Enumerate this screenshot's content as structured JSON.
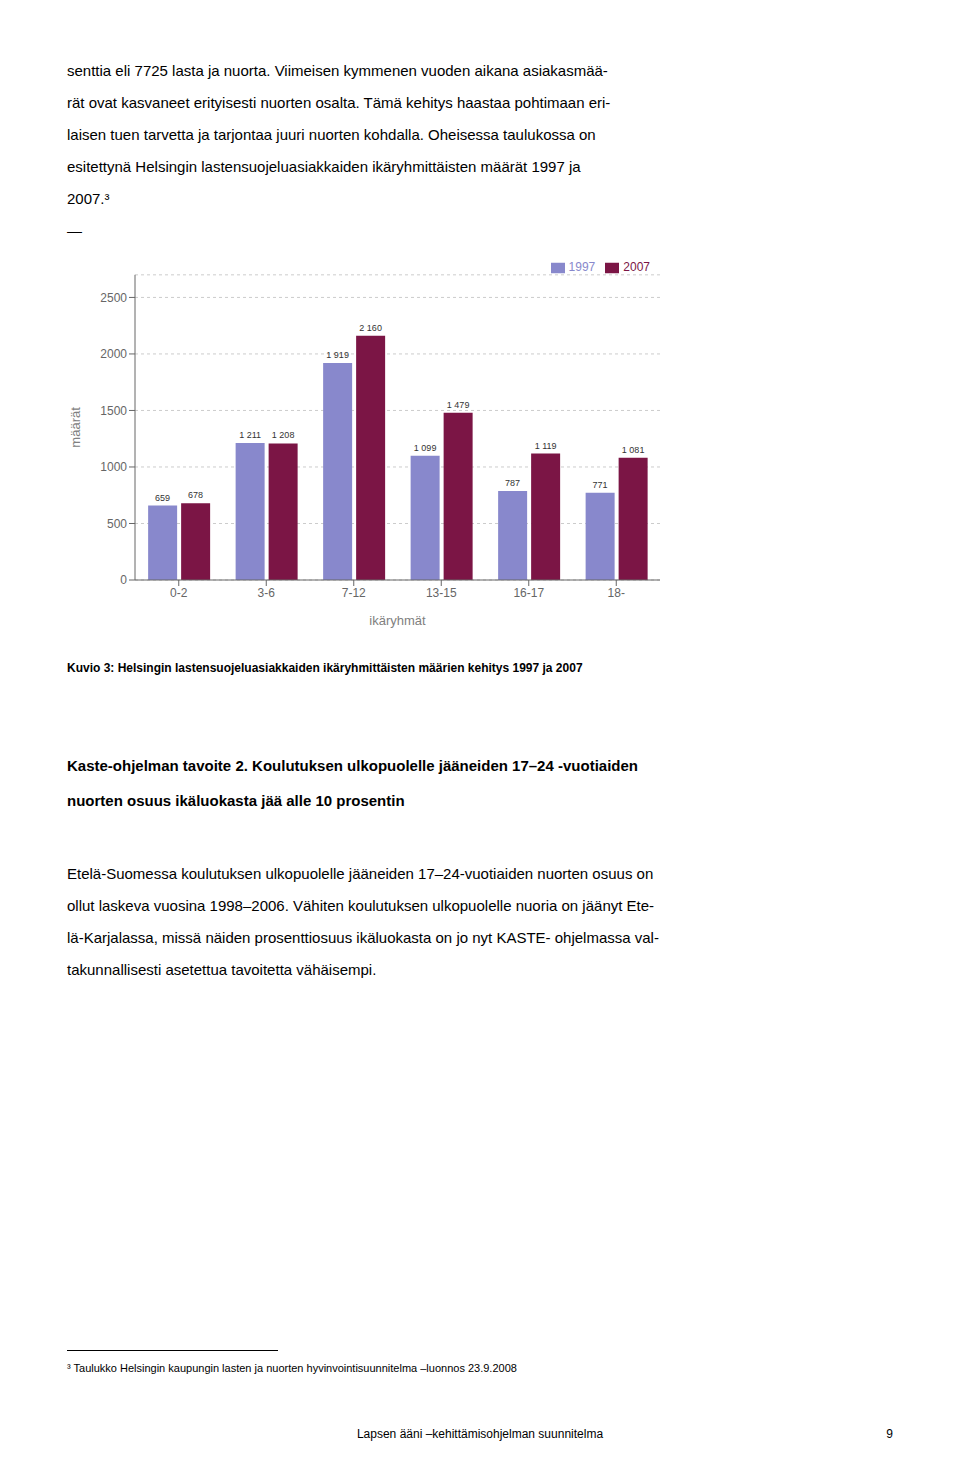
{
  "chart_data": {
    "type": "bar",
    "title": "Kuvio 3: Helsingin lastensuojeluasiakkaiden ikäryhmittäisten määrien kehitys 1997 ja 2007",
    "categories": [
      "0-2",
      "3-6",
      "7-12",
      "13-15",
      "16-17",
      "18-"
    ],
    "series": [
      {
        "name": "1997",
        "color": "#8888cc",
        "values": [
          659,
          1211,
          1919,
          1099,
          787,
          771
        ],
        "value_labels": [
          "659",
          "1 211",
          "1 919",
          "1 099",
          "787",
          "771"
        ]
      },
      {
        "name": "2007",
        "color": "#7b1545",
        "values": [
          678,
          1208,
          2160,
          1479,
          1119,
          1081
        ],
        "value_labels": [
          "678",
          "1 208",
          "2 160",
          "1 479",
          "1 119",
          "1 081"
        ]
      }
    ],
    "xlabel": "ikäryhmät",
    "ylabel": "määrät",
    "ylim": [
      0,
      2700
    ],
    "yticks": [
      0,
      500,
      1000,
      1500,
      2000,
      2500
    ],
    "grid": true,
    "legend": "upper right",
    "data_labels": true,
    "annotations": [
      [
        "senttia eli 7725 lasta ja nuorta. Viimeisen kymmenen vuoden aikana asiakasmää-",
        "rät ovat kasvaneet erityisesti nuorten osalta. Tämä kehitys haastaa pohtimaan eri-",
        "laisen tuen tarvetta ja tarjontaa juuri nuorten kohdalla. Oheisessa taulukossa on",
        "esitettynä Helsingin lastensuojeluasiakkaiden ikäryhmittäisten määrät 1997 ja",
        "2007.³",
        "—"
      ],
      [
        "Kaste-ohjelman tavoite 2. Koulutuksen ulkopuolelle jääneiden 17–24 -vuotiaiden",
        "nuorten osuus ikäluokasta jää alle 10 prosentin"
      ],
      [
        "Etelä-Suomessa koulutuksen ulkopuolelle jääneiden 17–24-vuotiaiden nuorten osuus on",
        "ollut laskeva vuosina 1998–2006. Vähiten koulutuksen ulkopuolelle nuoria on jäänyt Ete-",
        "lä-Karjalassa, missä näiden prosenttiosuus ikäluokasta on jo nyt KASTE- ohjelmassa val-",
        "takunnallisesti asetettua tavoitetta vähäisempi."
      ],
      [
        "³ Taulukko Helsingin kaupungin lasten ja nuorten hyvinvointisuunnitelma –luonnos 23.9.2008"
      ],
      [
        "Lapsen ääni –kehittämisohjelman suunnitelma",
        "9"
      ]
    ]
  }
}
